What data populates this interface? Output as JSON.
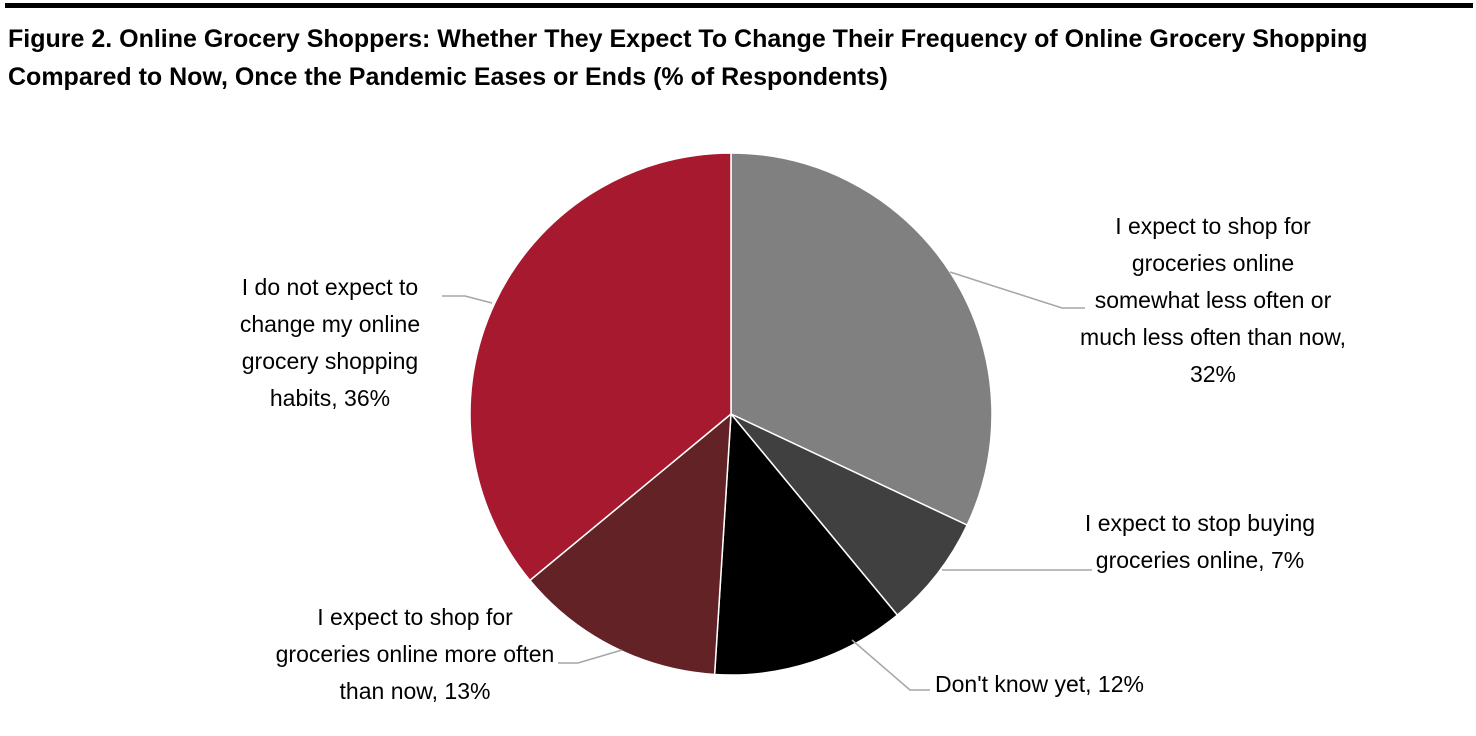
{
  "chart_data": {
    "type": "pie",
    "title": "Figure 2. Online Grocery Shoppers: Whether They Expect To Change Their Frequency of Online Grocery Shopping Compared to Now, Once the Pandemic Eases or Ends (% of Respondents)",
    "values": [
      32,
      7,
      12,
      13,
      36
    ],
    "value_labels": [
      "I expect to shop for groceries online somewhat less often or much less often than now, 32%",
      "I expect to stop buying groceries online, 7%",
      "Don't know yet, 12%",
      "I expect to shop for groceries online more often than now, 13%",
      "I do not expect to change my online grocery shopping habits, 36%"
    ],
    "colors": [
      "#808080",
      "#404040",
      "#000000",
      "#632326",
      "#a6192e"
    ]
  }
}
